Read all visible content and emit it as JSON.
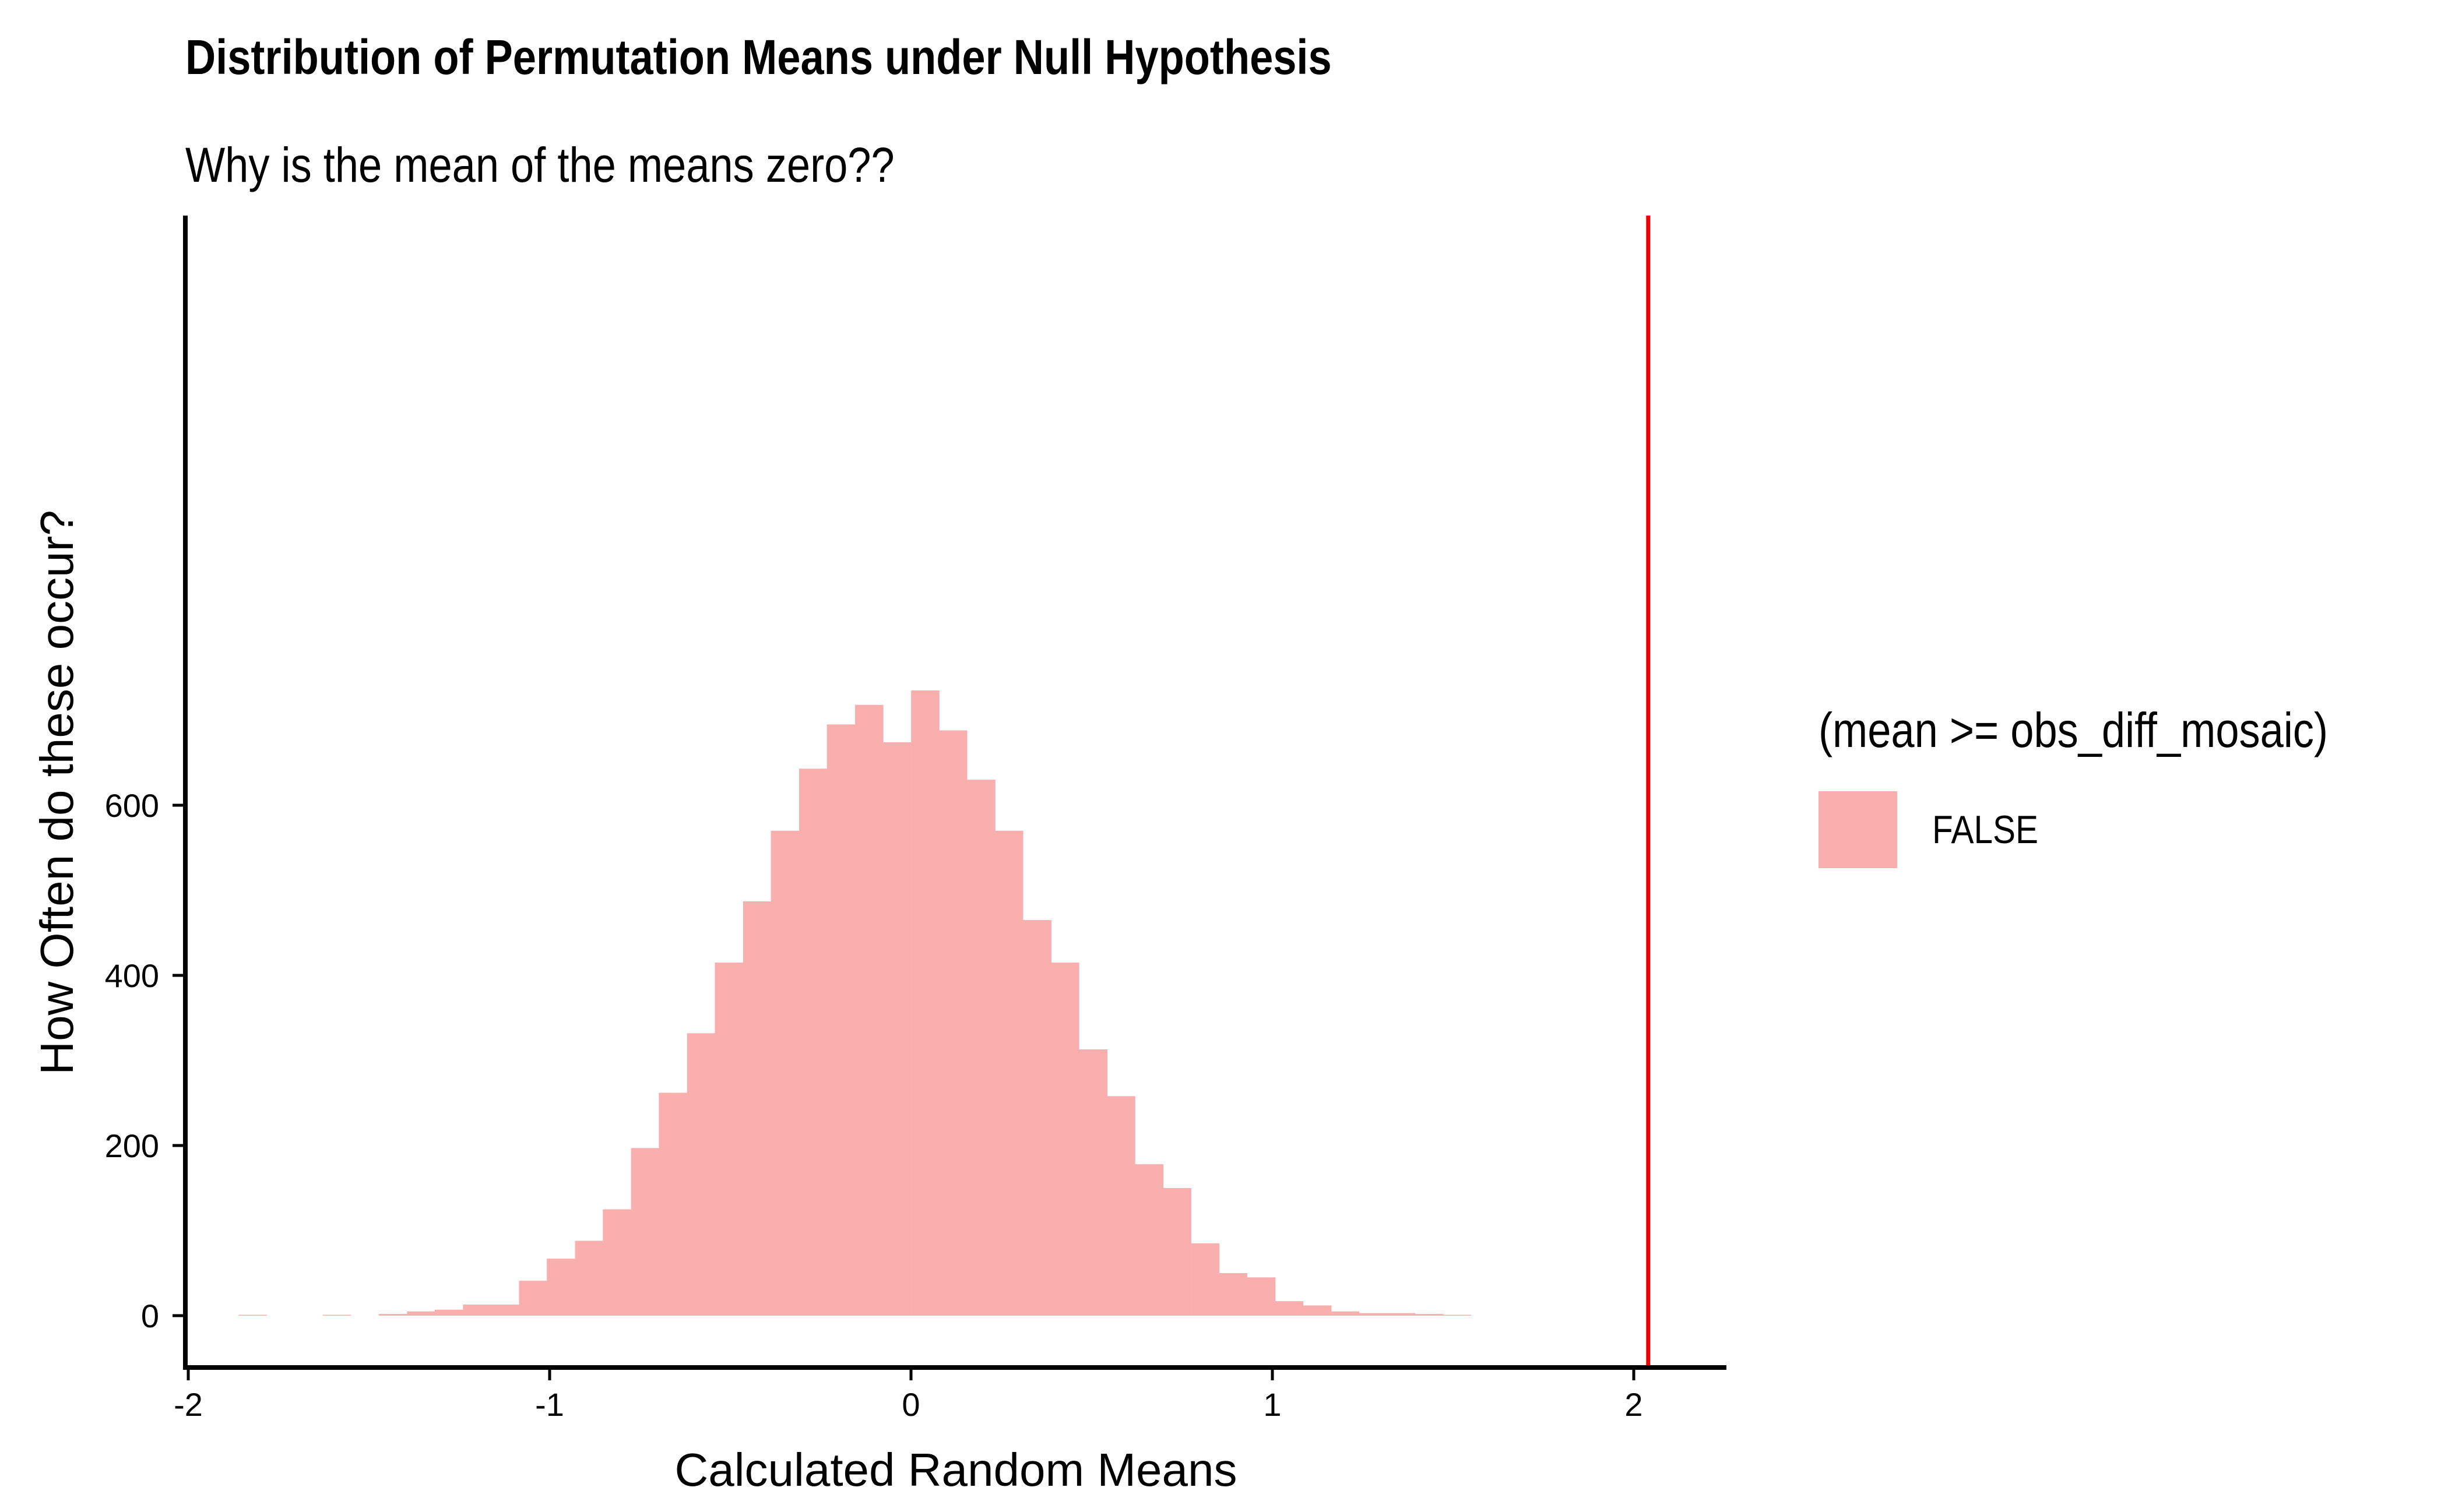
{
  "chart_data": {
    "type": "bar",
    "title": "Distribution of Permutation Means under Null Hypothesis",
    "subtitle": "Why is the mean of the means zero??",
    "xlabel": "Calculated Random Means",
    "ylabel": "How Often do these occur?",
    "xlim": [
      -2,
      2.2
    ],
    "ylim": [
      0,
      740
    ],
    "x_ticks": [
      -2,
      -1,
      0,
      1,
      2
    ],
    "x_tick_labels": [
      "-2",
      "-1",
      "0",
      "1",
      "2"
    ],
    "y_ticks": [
      0,
      200,
      400,
      600
    ],
    "y_tick_labels": [
      "0",
      "200",
      "400",
      "600"
    ],
    "grid": false,
    "legend": {
      "title": "(mean >= obs_diff_mosaic)",
      "placement": "right",
      "entries": [
        {
          "label": "FALSE",
          "color": "#F8AFAE"
        }
      ]
    },
    "bin_width": 0.0775,
    "bins": [
      {
        "x": -1.822,
        "count": 1
      },
      {
        "x": -1.589,
        "count": 1
      },
      {
        "x": -1.434,
        "count": 2
      },
      {
        "x": -1.356,
        "count": 5
      },
      {
        "x": -1.279,
        "count": 7
      },
      {
        "x": -1.201,
        "count": 13
      },
      {
        "x": -1.124,
        "count": 13
      },
      {
        "x": -1.046,
        "count": 41
      },
      {
        "x": -0.969,
        "count": 67
      },
      {
        "x": -0.891,
        "count": 88
      },
      {
        "x": -0.814,
        "count": 125
      },
      {
        "x": -0.736,
        "count": 197
      },
      {
        "x": -0.659,
        "count": 262
      },
      {
        "x": -0.581,
        "count": 332
      },
      {
        "x": -0.504,
        "count": 415
      },
      {
        "x": -0.426,
        "count": 487
      },
      {
        "x": -0.349,
        "count": 570
      },
      {
        "x": -0.271,
        "count": 643
      },
      {
        "x": -0.194,
        "count": 695
      },
      {
        "x": -0.116,
        "count": 718
      },
      {
        "x": -0.039,
        "count": 674
      },
      {
        "x": 0.039,
        "count": 735
      },
      {
        "x": 0.116,
        "count": 688
      },
      {
        "x": 0.194,
        "count": 630
      },
      {
        "x": 0.271,
        "count": 570
      },
      {
        "x": 0.349,
        "count": 465
      },
      {
        "x": 0.426,
        "count": 415
      },
      {
        "x": 0.504,
        "count": 313
      },
      {
        "x": 0.581,
        "count": 258
      },
      {
        "x": 0.659,
        "count": 178
      },
      {
        "x": 0.736,
        "count": 150
      },
      {
        "x": 0.814,
        "count": 85
      },
      {
        "x": 0.891,
        "count": 50
      },
      {
        "x": 0.969,
        "count": 45
      },
      {
        "x": 1.046,
        "count": 17
      },
      {
        "x": 1.124,
        "count": 12
      },
      {
        "x": 1.201,
        "count": 5
      },
      {
        "x": 1.279,
        "count": 3
      },
      {
        "x": 1.356,
        "count": 3
      },
      {
        "x": 1.434,
        "count": 2
      },
      {
        "x": 1.511,
        "count": 1
      }
    ],
    "reference_line": {
      "x": 2.04,
      "color": "#EE0000"
    },
    "bar_color": "#F8AFAE"
  }
}
